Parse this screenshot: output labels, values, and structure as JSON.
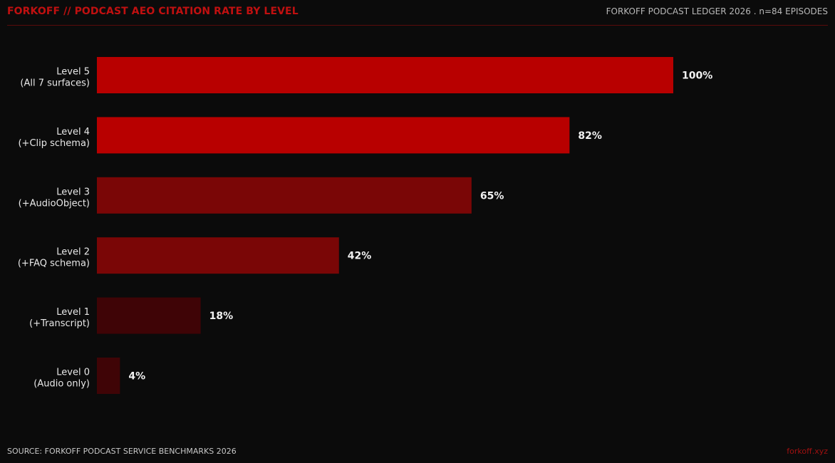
{
  "header": {
    "title": "FORKOFF // PODCAST AEO CITATION RATE BY LEVEL",
    "meta": "FORKOFF PODCAST LEDGER 2026 . n=84 EPISODES"
  },
  "footer": {
    "source": "SOURCE: FORKOFF PODCAST SERVICE BENCHMARKS 2026",
    "link": "forkoff.xyz"
  },
  "chart_data": {
    "type": "bar",
    "orientation": "horizontal",
    "title": "FORKOFF // PODCAST AEO CITATION RATE BY LEVEL",
    "xlim": [
      0,
      100
    ],
    "grid": false,
    "legend": "none",
    "value_suffix": "%",
    "categories": [
      {
        "line1": "Level 5",
        "line2": "(All 7 surfaces)"
      },
      {
        "line1": "Level 4",
        "line2": "(+Clip schema)"
      },
      {
        "line1": "Level 3",
        "line2": "(+AudioObject)"
      },
      {
        "line1": "Level 2",
        "line2": "(+FAQ schema)"
      },
      {
        "line1": "Level 1",
        "line2": "(+Transcript)"
      },
      {
        "line1": "Level 0",
        "line2": "(Audio only)"
      }
    ],
    "values": [
      100,
      82,
      65,
      42,
      18,
      4
    ],
    "colors": [
      "#b80000",
      "#b80000",
      "#7a0606",
      "#7a0606",
      "#3f0406",
      "#3f0406"
    ]
  }
}
